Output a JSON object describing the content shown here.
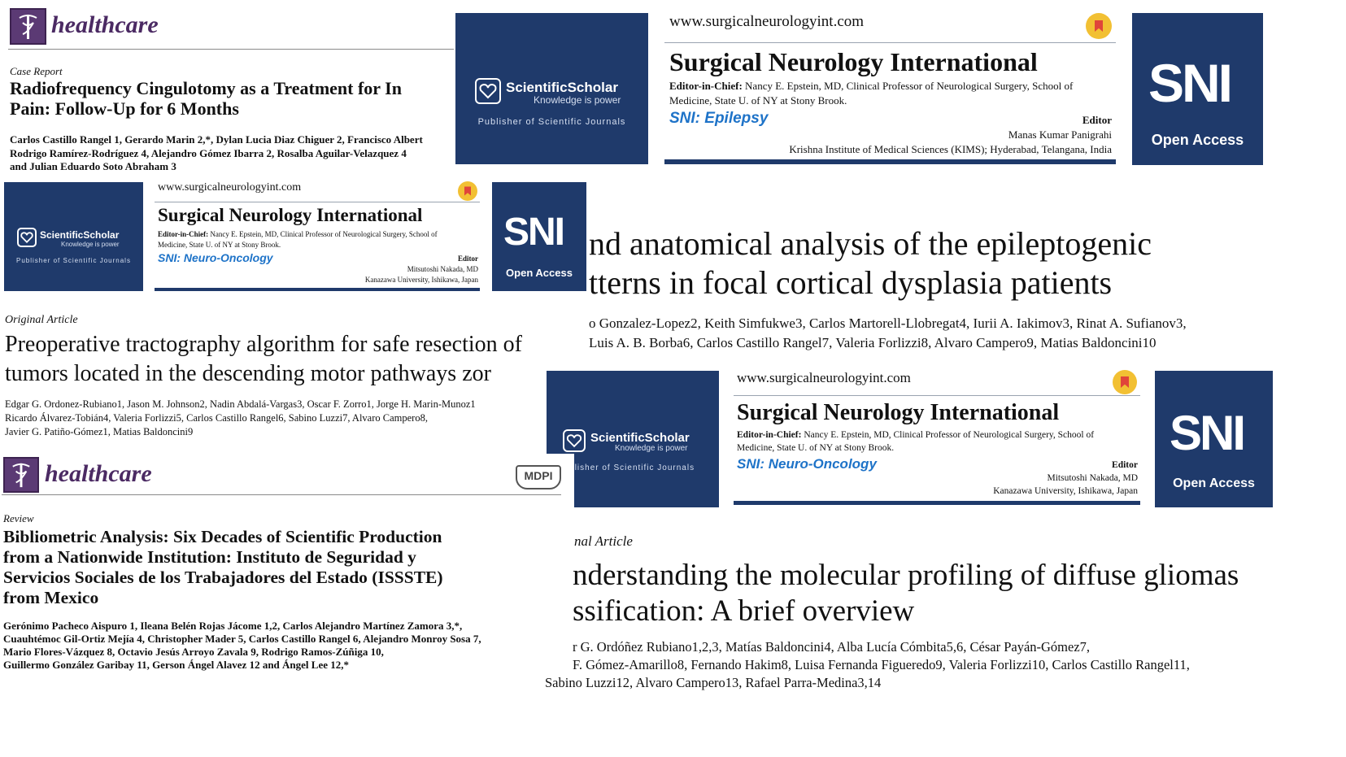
{
  "panel1": {
    "journal_word": "healthcare",
    "type": "Case Report",
    "title_line1": "Radiofrequency Cingulotomy as a Treatment for In",
    "title_line2": "Pain: Follow-Up for 6 Months",
    "authors_line1": "Carlos Castillo Rangel 1, Gerardo Marin 2,*, Dylan Lucia Diaz Chiguer 2, Francisco Albert",
    "authors_line2": "Rodrigo Ramírez-Rodríguez 4, Alejandro Gómez Ibarra 2, Rosalba Aguilar-Velazquez 4",
    "authors_line3": "and Julian Eduardo Soto Abraham 3"
  },
  "scholar1": {
    "name": "ScientificScholar",
    "tagline": "Knowledge is power",
    "publisher": "Publisher of Scientific Journals"
  },
  "sni_epilepsy": {
    "url": "www.surgicalneurologyint.com",
    "journal": "Surgical Neurology International",
    "eic_label": "Editor-in-Chief:",
    "eic_text": "Nancy E. Epstein, MD, Clinical Professor of Neurological Surgery, School of",
    "eic_text2": "Medicine, State U. of NY at Stony Brook.",
    "section": "SNI: Epilepsy",
    "editor_label": "Editor",
    "editor_name": "Manas Kumar Panigrahi",
    "editor_affil": "Krishna Institute of Medical Sciences (KIMS); Hyderabad, Telangana, India",
    "logo": "SNI",
    "access": "Open Access"
  },
  "scholar2": {
    "name": "ScientificScholar",
    "tagline": "Knowledge is power",
    "publisher": "Publisher of Scientific Journals"
  },
  "sni_onco1": {
    "url": "www.surgicalneurologyint.com",
    "journal": "Surgical Neurology International",
    "eic_label": "Editor-in-Chief:",
    "eic_text": "Nancy E. Epstein, MD, Clinical Professor of Neurological Surgery, School of",
    "eic_text2": "Medicine, State U. of NY at Stony Brook.",
    "section": "SNI: Neuro-Oncology",
    "editor_label": "Editor",
    "editor_name": "Mitsutoshi Nakada, MD",
    "editor_affil": "Kanazawa University, Ishikawa, Japan",
    "logo": "SNI",
    "access": "Open Access"
  },
  "epilepto": {
    "title_line1": "nd anatomical analysis of the epileptogenic",
    "title_line2": "tterns in focal cortical dysplasia patients",
    "authors_line1": "o Gonzalez-Lopez2, Keith Simfukwe3, Carlos Martorell-Llobregat4, Iurii A. Iakimov3, Rinat A. Sufianov3,",
    "authors_line2": "Luis A. B. Borba6, Carlos Castillo Rangel7, Valeria Forlizzi8, Alvaro Campero9, Matias Baldoncini10"
  },
  "tracto": {
    "type": "Original Article",
    "title_line1": "Preoperative tractography algorithm for safe resection of",
    "title_line2": "tumors located in the descending motor pathways zor",
    "authors_line1": "Edgar G. Ordonez-Rubiano1, Jason M. Johnson2, Nadin Abdalá-Vargas3, Oscar F. Zorro1, Jorge H. Marin-Munoz1",
    "authors_line2": "Ricardo Álvarez-Tobián4, Valeria Forlizzi5, Carlos Castillo Rangel6, Sabino Luzzi7, Alvaro Campero8,",
    "authors_line3": "Javier G. Patiño-Gómez1, Matias Baldoncini9"
  },
  "scholar3": {
    "name": "ScientificScholar",
    "tagline": "Knowledge is power",
    "publisher": "Publisher of Scientific Journals"
  },
  "sni_onco2": {
    "url": "www.surgicalneurologyint.com",
    "journal": "Surgical Neurology International",
    "eic_label": "Editor-in-Chief:",
    "eic_text": "Nancy E. Epstein, MD, Clinical Professor of Neurological Surgery, School of",
    "eic_text2": "Medicine, State U. of NY at Stony Brook.",
    "section": "SNI: Neuro-Oncology",
    "editor_label": "Editor",
    "editor_name": "Mitsutoshi Nakada, MD",
    "editor_affil": "Kanazawa University, Ishikawa, Japan",
    "logo": "SNI",
    "access": "Open Access"
  },
  "panel_biblio": {
    "journal_word": "healthcare",
    "mdpi": "MDPI",
    "type": "Review",
    "title_line1": "Bibliometric Analysis: Six Decades of Scientific Production",
    "title_line2": "from a Nationwide Institution: Instituto de Seguridad y",
    "title_line3": "Servicios Sociales de los Trabajadores del Estado (ISSSTE)",
    "title_line4": "from Mexico",
    "authors_line1": "Gerónimo Pacheco Aispuro 1, Ileana Belén Rojas Jácome 1,2, Carlos Alejandro Martínez Zamora 3,*,",
    "authors_line2": "Cuauhtémoc Gil-Ortiz Mejía 4, Christopher Mader 5, Carlos Castillo Rangel 6, Alejandro Monroy Sosa 7,",
    "authors_line3": "Mario Flores-Vázquez 8, Octavio Jesús Arroyo Zavala 9, Rodrigo Ramos-Zúñiga 10,",
    "authors_line4": "Guillermo González Garibay 11, Gerson Ángel Alavez 12 and Ángel Lee 12,*"
  },
  "glioma": {
    "type": "nal Article",
    "title_line1": "nderstanding the molecular profiling of diffuse gliomas",
    "title_line2": "ssification: A brief overview",
    "authors_line1": "r G. Ordóñez Rubiano1,2,3, Matías Baldoncini4, Alba Lucía Cómbita5,6, César Payán-Gómez7,",
    "authors_line2": "F. Gómez-Amarillo8, Fernando Hakim8, Luisa Fernanda Figueredo9, Valeria Forlizzi10, Carlos Castillo Rangel11,",
    "authors_line3": "Sabino Luzzi12, Alvaro Campero13, Rafael Parra-Medina3,14"
  },
  "colors": {
    "navy": "#1f3a6b",
    "healthcare_purple": "#4b2a63",
    "sni_section_blue": "#1e73c8",
    "orcid_green": "#a6ce39"
  },
  "icons": {
    "healthcare_logo": "caduceus-icon",
    "scholar_logo": "scholar-heart-icon",
    "bookmark": "bookmark-badge-icon",
    "orcid": "orcid-icon"
  }
}
